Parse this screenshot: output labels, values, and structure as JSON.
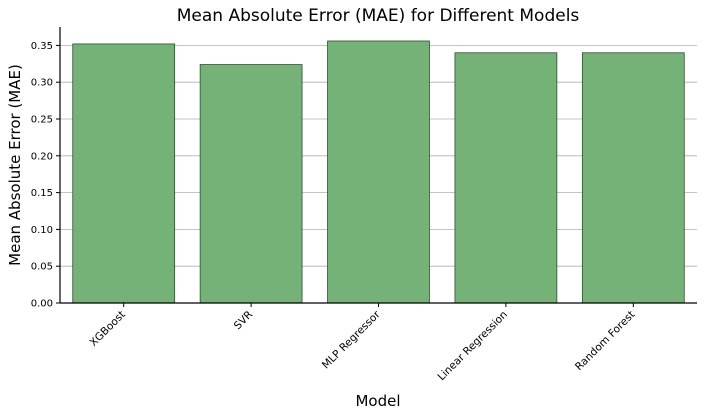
{
  "chart_data": {
    "type": "bar",
    "title": "Mean Absolute Error (MAE) for Different Models",
    "xlabel": "Model",
    "ylabel": "Mean Absolute Error (MAE)",
    "categories": [
      "XGBoost",
      "SVR",
      "MLP Regressor",
      "Linear Regression",
      "Random Forest"
    ],
    "values": [
      0.352,
      0.324,
      0.356,
      0.34,
      0.34
    ],
    "ylim": [
      0,
      0.375
    ],
    "yticks": [
      "0.00",
      "0.05",
      "0.10",
      "0.15",
      "0.20",
      "0.25",
      "0.30",
      "0.35"
    ],
    "grid": "y-major",
    "bar_color": "#74b277",
    "bar_edge_color": "#2f4f2f"
  }
}
